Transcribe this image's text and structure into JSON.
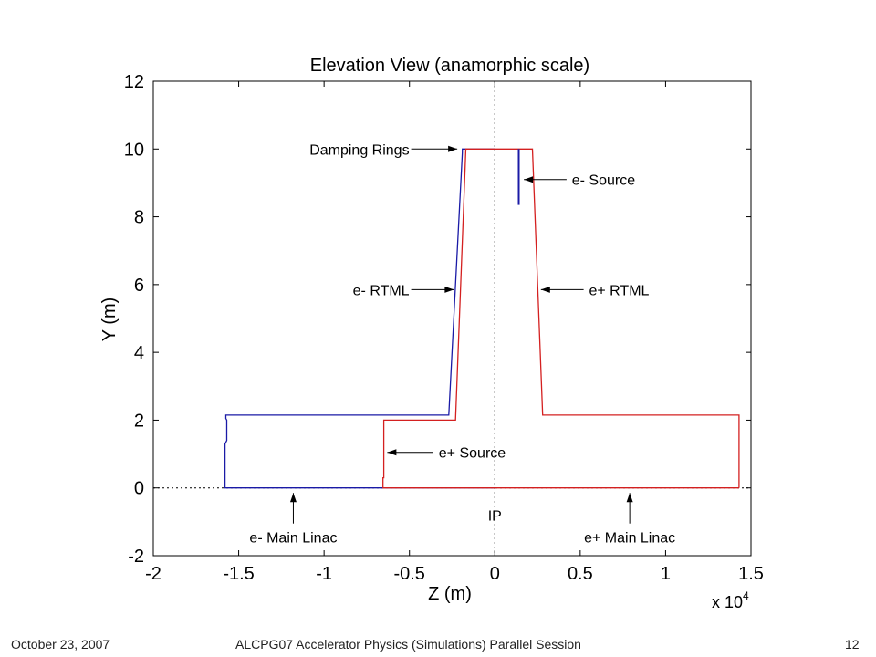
{
  "chart_data": {
    "type": "line",
    "title": "Elevation View (anamorphic scale)",
    "xlabel": "Z (m)",
    "ylabel": "Y (m)",
    "x_multiplier": "x 10",
    "x_multiplier_exp": "4",
    "xlim": [
      -2,
      1.5
    ],
    "ylim": [
      -2,
      12
    ],
    "xticks": [
      -2,
      -1.5,
      -1,
      -0.5,
      0,
      0.5,
      1,
      1.5
    ],
    "xtick_labels": [
      "-2",
      "-1.5",
      "-1",
      "-0.5",
      "0",
      "0.5",
      "1",
      "1.5"
    ],
    "yticks": [
      -2,
      0,
      2,
      4,
      6,
      8,
      10,
      12
    ],
    "ytick_labels": [
      "-2",
      "0",
      "2",
      "4",
      "6",
      "8",
      "10",
      "12"
    ],
    "grid": false,
    "series": [
      {
        "color": "#1a1aa6",
        "x": [
          0,
          -1.58,
          -1.58,
          -1.57,
          -1.57,
          -1.575,
          -1.575,
          -0.27,
          -0.19,
          -0.19,
          0.0
        ],
        "y": [
          0,
          0,
          1.3,
          1.4,
          2.0,
          2.05,
          2.15,
          2.15,
          9.9,
          10.0,
          10.0
        ]
      },
      {
        "color": "#d42020",
        "x": [
          1.43,
          1.43,
          0.28,
          0.22,
          0.0,
          -0.17,
          -0.23,
          -0.65,
          -0.65,
          -0.655,
          -0.655,
          1.43
        ],
        "y": [
          0,
          2.15,
          2.15,
          10.0,
          10.0,
          10.0,
          2.0,
          2.0,
          0.3,
          0.3,
          0,
          0
        ]
      },
      {
        "color": "#1a1aa6",
        "x": [
          0.14,
          0.14
        ],
        "y": [
          10.0,
          8.35
        ]
      }
    ],
    "reference_lines": [
      {
        "orientation": "vertical",
        "value": 0,
        "style": "dotted"
      },
      {
        "orientation": "horizontal",
        "value": 0,
        "style": "dotted"
      }
    ],
    "annotations": [
      {
        "text": "Damping Rings",
        "text_x": -0.49,
        "text_y": 10.0,
        "anchor": "end",
        "arrow_from_x": -0.49,
        "arrow_from_y": 10.0,
        "arrow_to_x": -0.22,
        "arrow_to_y": 10.0
      },
      {
        "text": "e- Source",
        "text_x": 0.43,
        "text_y": 9.1,
        "anchor": "start",
        "arrow_from_x": 0.42,
        "arrow_from_y": 9.1,
        "arrow_to_x": 0.17,
        "arrow_to_y": 9.1
      },
      {
        "text": "e- RTML",
        "text_x": -0.49,
        "text_y": 5.85,
        "anchor": "end",
        "arrow_from_x": -0.49,
        "arrow_from_y": 5.85,
        "arrow_to_x": -0.24,
        "arrow_to_y": 5.85
      },
      {
        "text": "e+ RTML",
        "text_x": 0.53,
        "text_y": 5.85,
        "anchor": "start",
        "arrow_from_x": 0.52,
        "arrow_from_y": 5.85,
        "arrow_to_x": 0.27,
        "arrow_to_y": 5.85
      },
      {
        "text": "e+ Source",
        "text_x": -0.35,
        "text_y": 1.05,
        "anchor": "start",
        "arrow_from_x": -0.36,
        "arrow_from_y": 1.05,
        "arrow_to_x": -0.63,
        "arrow_to_y": 1.05
      },
      {
        "text": "e- Main Linac",
        "text_x": -1.18,
        "text_y": -1.45,
        "anchor": "middle",
        "arrow_from_x": -1.18,
        "arrow_from_y": -1.05,
        "arrow_to_x": -1.18,
        "arrow_to_y": -0.15
      },
      {
        "text": "e+ Main Linac",
        "text_x": 0.79,
        "text_y": -1.45,
        "anchor": "middle",
        "arrow_from_x": 0.79,
        "arrow_from_y": -1.05,
        "arrow_to_x": 0.79,
        "arrow_to_y": -0.15
      },
      {
        "text": "IP",
        "text_x": 0.0,
        "text_y": -0.8,
        "anchor": "middle"
      }
    ]
  },
  "footer": {
    "date": "October 23, 2007",
    "session": "ALCPG07 Accelerator Physics (Simulations) Parallel Session",
    "page": "12"
  }
}
